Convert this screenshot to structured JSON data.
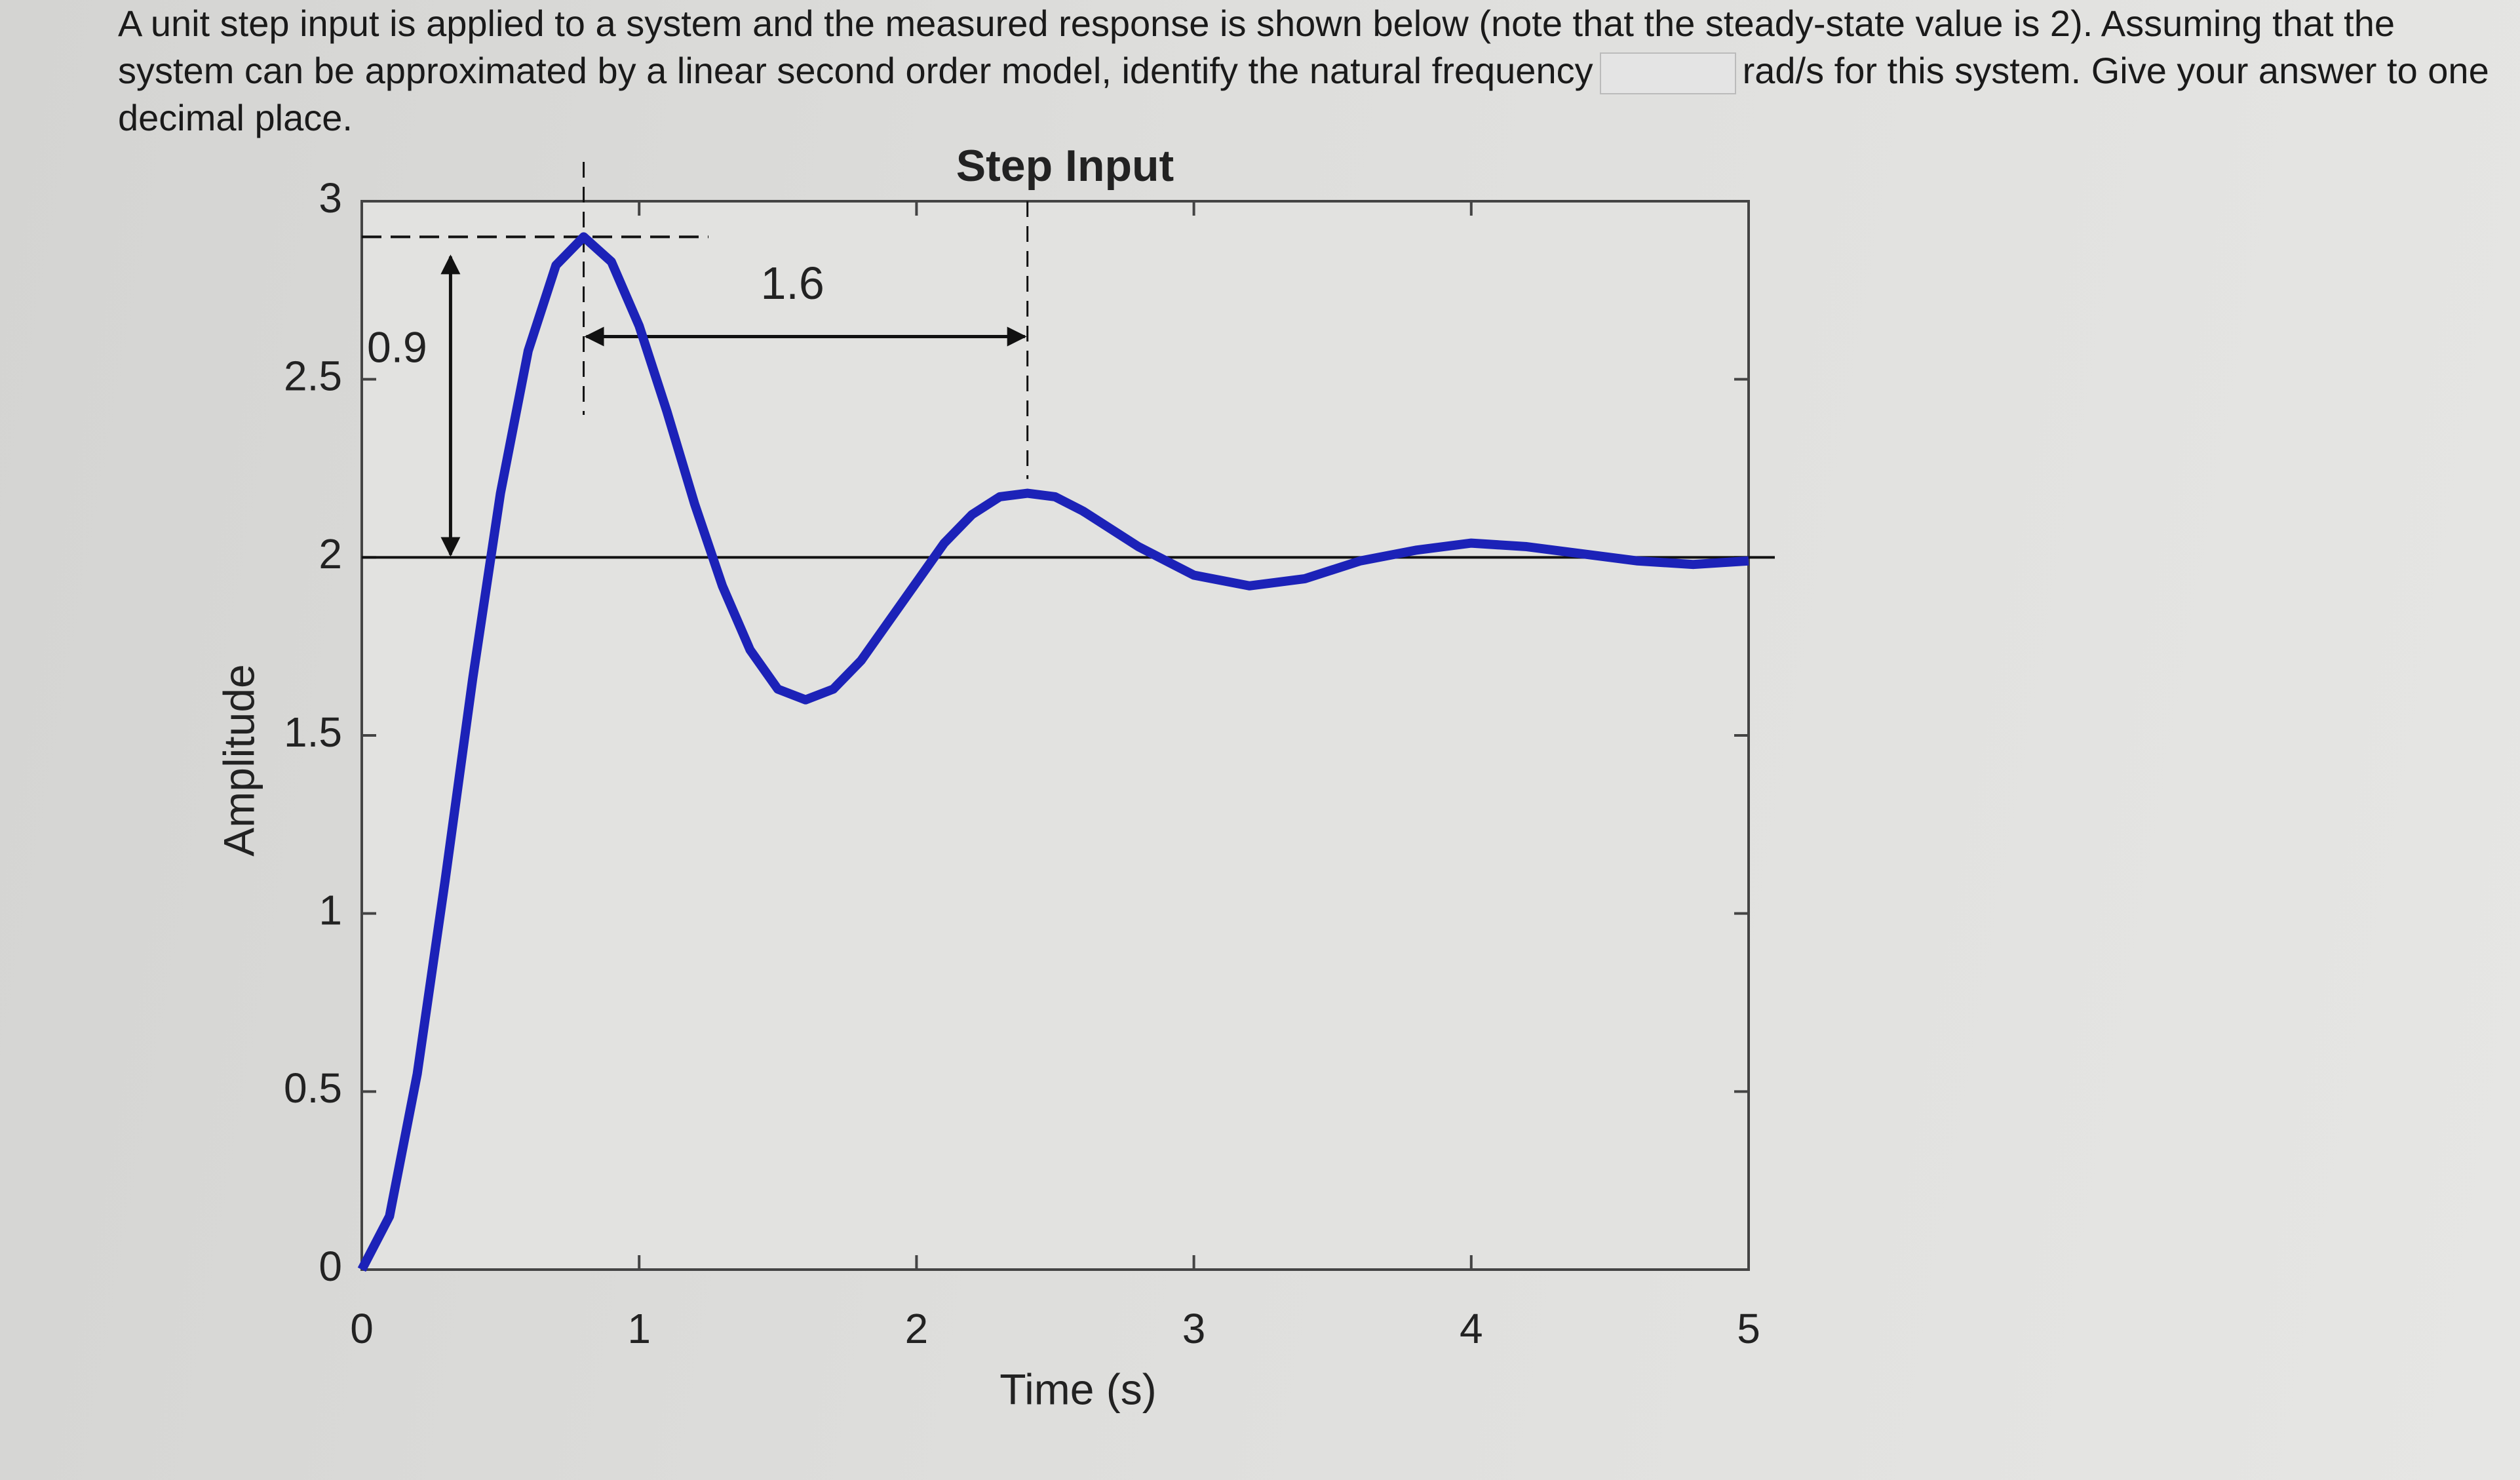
{
  "question": {
    "text": "A unit step input is applied to a system and the measured response is shown below (note that the steady-state value is 2). Assuming that the system can be approximated by a linear second order model, identify the natural frequency",
    "unit_text": "rad/s for this system. Give your answer to one decimal place."
  },
  "chart_data": {
    "type": "line",
    "title": "Step Input",
    "x_label": "Time (s)",
    "y_label": "Amplitude",
    "x": [
      0,
      0.1,
      0.2,
      0.3,
      0.4,
      0.5,
      0.6,
      0.7,
      0.8,
      0.9,
      1.0,
      1.1,
      1.2,
      1.3,
      1.4,
      1.5,
      1.6,
      1.7,
      1.8,
      1.9,
      2.0,
      2.1,
      2.2,
      2.3,
      2.4,
      2.5,
      2.6,
      2.8,
      3.0,
      3.2,
      3.4,
      3.6,
      3.8,
      4.0,
      4.2,
      4.4,
      4.6,
      4.8,
      5.0
    ],
    "values": [
      0,
      0.15,
      0.55,
      1.09,
      1.66,
      2.18,
      2.58,
      2.82,
      2.9,
      2.83,
      2.65,
      2.41,
      2.15,
      1.92,
      1.74,
      1.63,
      1.6,
      1.63,
      1.71,
      1.82,
      1.93,
      2.04,
      2.12,
      2.17,
      2.18,
      2.17,
      2.13,
      2.03,
      1.95,
      1.92,
      1.94,
      1.99,
      2.02,
      2.04,
      2.03,
      2.01,
      1.99,
      1.98,
      1.99
    ],
    "color": "#1c22b8",
    "hline": 2,
    "annotations": [
      {
        "text": "0.9",
        "x": 0.32,
        "y": [
          2,
          2.9
        ]
      },
      {
        "text": "1.6",
        "x": [
          0.8,
          2.4
        ],
        "y": 2.62
      }
    ],
    "xlim": [
      0,
      5
    ],
    "ylim": [
      0,
      3
    ],
    "xticks": [
      0,
      1,
      2,
      3,
      4,
      5
    ],
    "yticks": [
      0,
      0.5,
      1,
      1.5,
      2,
      2.5,
      3
    ]
  }
}
